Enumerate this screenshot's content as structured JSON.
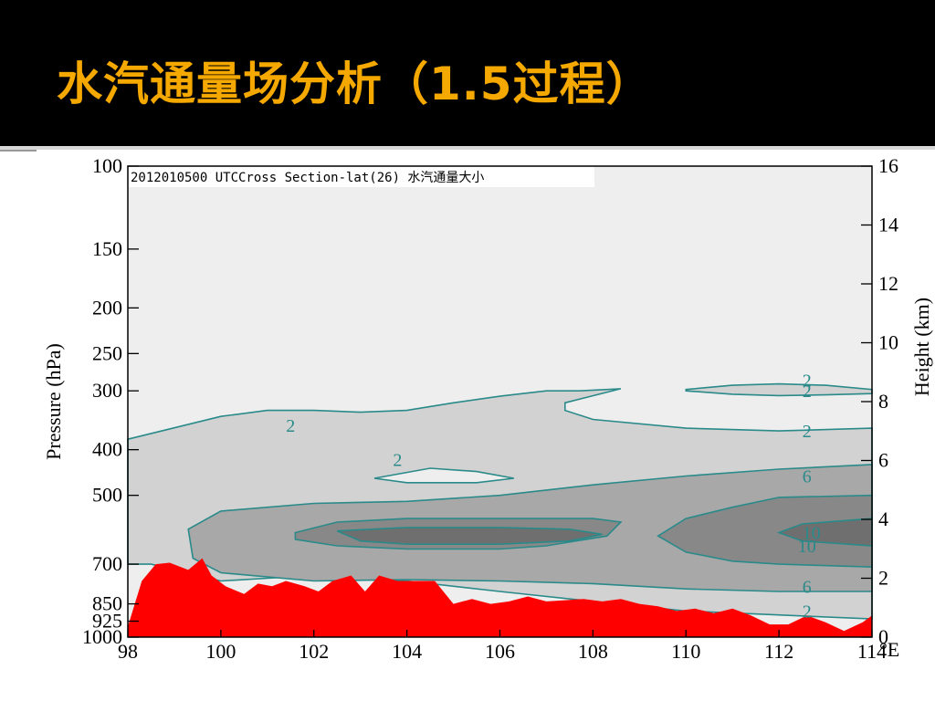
{
  "slide": {
    "title": "水汽通量场分析（1.5过程）",
    "title_color": "#f5a800",
    "background_top": "#000000"
  },
  "chart_data": {
    "type": "contour",
    "title": "2012010500 UTCCross Section-lat(26) 水汽通量大小",
    "xlabel": "°E",
    "ylabel_left": "Pressure (hPa)",
    "ylabel_right": "Height (km)",
    "x_ticks": [
      98,
      100,
      102,
      104,
      106,
      108,
      110,
      112,
      114
    ],
    "xlim": [
      98,
      114
    ],
    "left_ticks": [
      100,
      150,
      200,
      250,
      300,
      400,
      500,
      700,
      850,
      925,
      1000
    ],
    "left_tick_labels": [
      "100",
      "150",
      "200",
      "250",
      "300",
      "400",
      "500",
      "700",
      "850",
      "925",
      "1000"
    ],
    "pressure_range": [
      1000,
      100
    ],
    "pressure_scale": "log",
    "right_ticks": [
      0,
      2,
      4,
      6,
      8,
      10,
      12,
      14,
      16
    ],
    "height_range": [
      0,
      16
    ],
    "contour_levels": [
      2,
      6,
      10
    ],
    "contour_labels": [
      {
        "text": "2",
        "x": 101.5,
        "p": 355
      },
      {
        "text": "2",
        "x": 103.8,
        "p": 420
      },
      {
        "text": "2",
        "x": 112.6,
        "p": 285
      },
      {
        "text": "2",
        "x": 112.6,
        "p": 300
      },
      {
        "text": "2",
        "x": 112.6,
        "p": 365
      },
      {
        "text": "6",
        "x": 112.6,
        "p": 455
      },
      {
        "text": "10",
        "x": 112.7,
        "p": 600
      },
      {
        "text": "10",
        "x": 112.6,
        "p": 640
      },
      {
        "text": "6",
        "x": 112.6,
        "p": 780
      },
      {
        "text": "2",
        "x": 112.6,
        "p": 880
      }
    ],
    "regions": [
      {
        "level": 2,
        "color": "#d2d2d2",
        "boundary": [
          [
            98,
            380
          ],
          [
            100,
            340
          ],
          [
            101,
            330
          ],
          [
            102,
            330
          ],
          [
            103,
            333
          ],
          [
            104,
            330
          ],
          [
            105,
            318
          ],
          [
            106,
            308
          ],
          [
            107,
            300
          ],
          [
            107.7,
            300
          ],
          [
            108.6,
            297
          ],
          [
            107.4,
            318
          ],
          [
            107.4,
            330
          ],
          [
            108,
            345
          ],
          [
            110,
            360
          ],
          [
            112,
            365
          ],
          [
            114,
            360
          ],
          [
            114,
            915
          ],
          [
            110,
            880
          ],
          [
            108,
            840
          ],
          [
            106,
            800
          ],
          [
            104,
            760
          ],
          [
            102,
            740
          ],
          [
            100,
            760
          ],
          [
            98.5,
            700
          ],
          [
            98,
            700
          ]
        ]
      },
      {
        "level": 2,
        "color": "#d2d2d2",
        "boundary": [
          [
            110,
            298
          ],
          [
            111,
            292
          ],
          [
            112,
            290
          ],
          [
            113,
            292
          ],
          [
            114,
            298
          ],
          [
            114,
            304
          ],
          [
            113,
            306
          ],
          [
            112,
            307
          ],
          [
            111,
            305
          ],
          [
            110,
            300
          ]
        ]
      },
      {
        "level": 6,
        "color": "#a8a8a8",
        "boundary": [
          [
            114,
            430
          ],
          [
            112,
            440
          ],
          [
            110,
            455
          ],
          [
            108,
            475
          ],
          [
            106,
            500
          ],
          [
            104,
            515
          ],
          [
            102,
            520
          ],
          [
            100,
            540
          ],
          [
            99.3,
            590
          ],
          [
            99.4,
            680
          ],
          [
            100,
            730
          ],
          [
            102,
            760
          ],
          [
            104,
            755
          ],
          [
            106,
            760
          ],
          [
            108,
            770
          ],
          [
            110,
            790
          ],
          [
            112,
            800
          ],
          [
            114,
            800
          ]
        ]
      },
      {
        "level": 10,
        "color": "#888888",
        "boundary": [
          [
            114,
            500
          ],
          [
            112,
            505
          ],
          [
            111,
            530
          ],
          [
            110,
            560
          ],
          [
            109.4,
            610
          ],
          [
            110,
            660
          ],
          [
            111,
            690
          ],
          [
            112,
            700
          ],
          [
            114,
            710
          ]
        ]
      },
      {
        "level": 10,
        "color": "#888888",
        "boundary": [
          [
            101.6,
            600
          ],
          [
            102.5,
            570
          ],
          [
            104,
            560
          ],
          [
            106,
            560
          ],
          [
            107,
            560
          ],
          [
            108,
            560
          ],
          [
            108.6,
            570
          ],
          [
            108.3,
            610
          ],
          [
            107,
            640
          ],
          [
            106,
            650
          ],
          [
            104,
            650
          ],
          [
            102.5,
            640
          ],
          [
            101.6,
            620
          ]
        ]
      },
      {
        "level": 10,
        "color": "#6f6f6f",
        "boundary": [
          [
            114,
            560
          ],
          [
            112.5,
            575
          ],
          [
            112,
            600
          ],
          [
            112.5,
            625
          ],
          [
            114,
            640
          ]
        ]
      },
      {
        "level": 10,
        "color": "#6f6f6f",
        "boundary": [
          [
            102.5,
            595
          ],
          [
            104,
            585
          ],
          [
            106,
            585
          ],
          [
            107.5,
            590
          ],
          [
            108.2,
            605
          ],
          [
            107.5,
            625
          ],
          [
            106,
            635
          ],
          [
            104,
            635
          ],
          [
            103,
            625
          ]
        ]
      },
      {
        "level": 0,
        "color": "#eeeeee",
        "boundary": [
          [
            103.3,
            460
          ],
          [
            104.5,
            438
          ],
          [
            105.5,
            445
          ],
          [
            106.3,
            460
          ],
          [
            105.5,
            470
          ],
          [
            104,
            470
          ]
        ]
      }
    ],
    "terrain": {
      "color": "#ff0000",
      "x": [
        98,
        98.3,
        98.6,
        98.9,
        99.3,
        99.6,
        99.8,
        100.1,
        100.5,
        100.8,
        101.1,
        101.4,
        101.8,
        102.1,
        102.4,
        102.8,
        103.1,
        103.4,
        103.8,
        104.2,
        104.6,
        105,
        105.4,
        105.8,
        106.2,
        106.6,
        107,
        107.4,
        107.8,
        108.2,
        108.6,
        109,
        109.4,
        109.8,
        110.2,
        110.6,
        111,
        111.4,
        111.8,
        112.2,
        112.6,
        113,
        113.4,
        113.8,
        114
      ],
      "p": [
        950,
        760,
        700,
        695,
        720,
        680,
        740,
        780,
        810,
        770,
        780,
        760,
        780,
        800,
        760,
        740,
        800,
        740,
        760,
        760,
        760,
        850,
        830,
        850,
        840,
        820,
        840,
        835,
        830,
        840,
        830,
        850,
        860,
        880,
        870,
        890,
        870,
        900,
        940,
        940,
        900,
        930,
        970,
        930,
        900
      ]
    },
    "colors": {
      "contour_line": "#2a8a8a",
      "plot_background": "#eeeeee",
      "terrain": "#ff0000"
    }
  }
}
